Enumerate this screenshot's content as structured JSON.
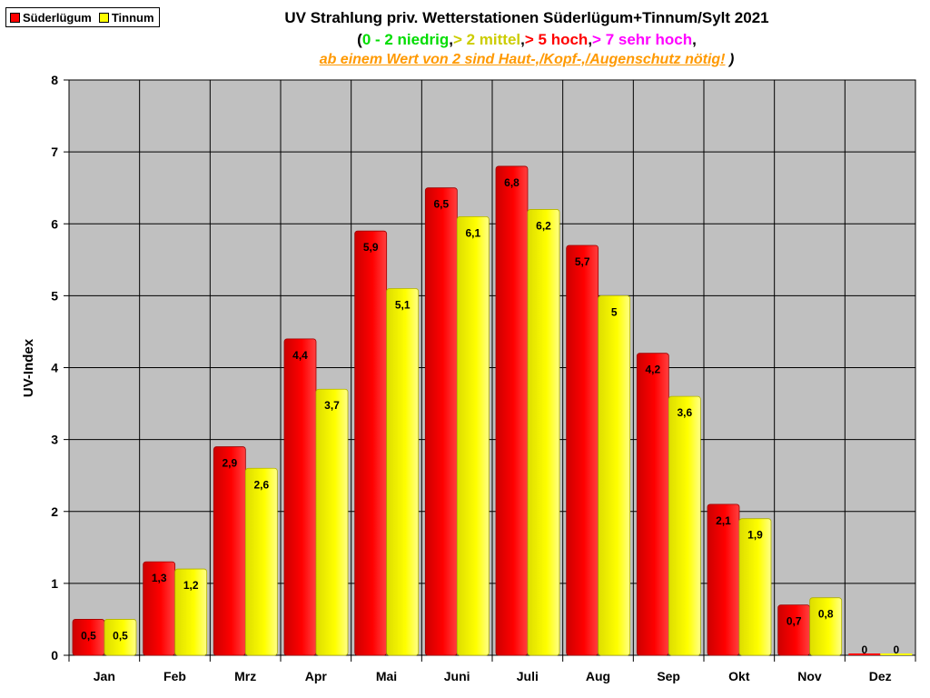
{
  "legend": {
    "items": [
      {
        "label": "Süderlügum",
        "color": "#ff0000"
      },
      {
        "label": "Tinnum",
        "color": "#ffff00"
      }
    ]
  },
  "titles": {
    "line1": "UV Strahlung priv. Wetterstationen Süderlügum+Tinnum/Sylt 2021",
    "line2": {
      "open": "(",
      "seg1": "0 - 2 niedrig",
      "sep1": ",",
      "seg2": "> 2 mittel",
      "sep2": ",",
      "seg3": "> 5 hoch",
      "sep3": ",",
      "seg4": "> 7 sehr hoch",
      "close": ","
    },
    "line3": {
      "warning": "ab einem Wert von 2 sind Haut-,/Kopf-,/Augenschutz nötig!",
      "close": " )"
    }
  },
  "colors": {
    "niedrig": "#00dd00",
    "mittel": "#cccc00",
    "hoch": "#ff0000",
    "sehr_hoch": "#ff00ff",
    "plot_bg": "#c0c0c0"
  },
  "chart_data": {
    "type": "bar",
    "ylabel": "UV-Index",
    "ylim": [
      0,
      8
    ],
    "yticks": [
      "0",
      "1",
      "2",
      "3",
      "4",
      "5",
      "6",
      "7",
      "8"
    ],
    "grid": true,
    "legend_position": "top-left",
    "categories": [
      "Jan",
      "Feb",
      "Mrz",
      "Apr",
      "Mai",
      "Juni",
      "Juli",
      "Aug",
      "Sep",
      "Okt",
      "Nov",
      "Dez"
    ],
    "series": [
      {
        "name": "Süderlügum",
        "color": "#ff0000",
        "values": [
          0.5,
          1.3,
          2.9,
          4.4,
          5.9,
          6.5,
          6.8,
          5.7,
          4.2,
          2.1,
          0.7,
          0
        ],
        "labels": [
          "0,5",
          "1,3",
          "2,9",
          "4,4",
          "5,9",
          "6,5",
          "6,8",
          "5,7",
          "4,2",
          "2,1",
          "0,7",
          "0"
        ]
      },
      {
        "name": "Tinnum",
        "color": "#ffff00",
        "values": [
          0.5,
          1.2,
          2.6,
          3.7,
          5.1,
          6.1,
          6.2,
          5,
          3.6,
          1.9,
          0.8,
          0
        ],
        "labels": [
          "0,5",
          "1,2",
          "2,6",
          "3,7",
          "5,1",
          "6,1",
          "6,2",
          "5",
          "3,6",
          "1,9",
          "0,8",
          "0"
        ]
      }
    ]
  }
}
